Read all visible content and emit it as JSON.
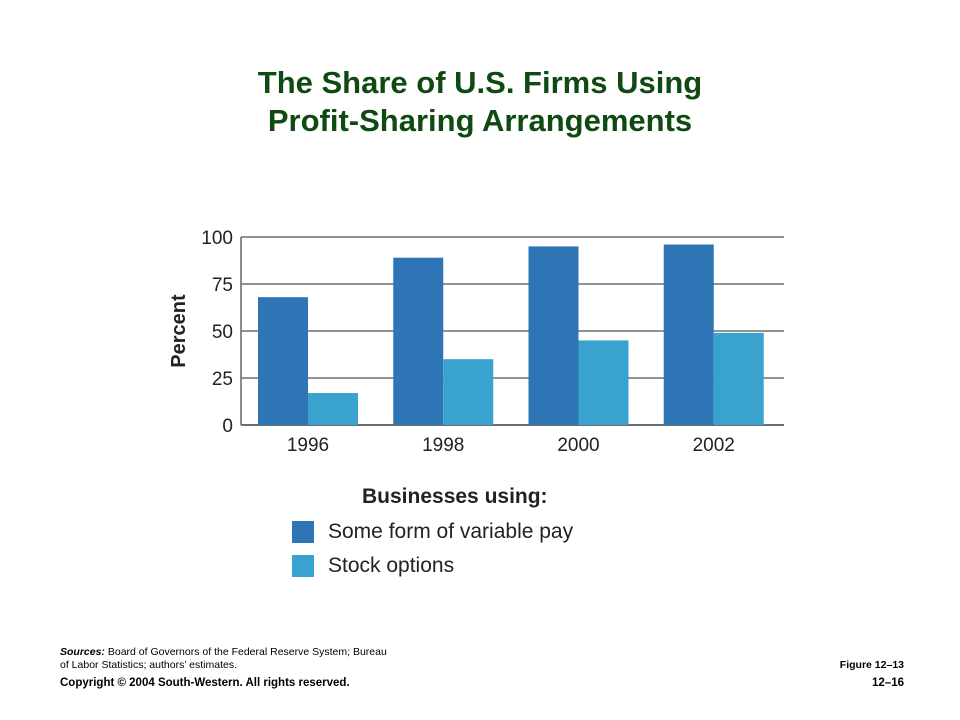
{
  "chart_data": {
    "type": "bar",
    "title": "The Share of U.S. Firms Using\nProfit-Sharing Arrangements",
    "ylabel": "Percent",
    "xlabel": "",
    "categories": [
      "1996",
      "1998",
      "2000",
      "2002"
    ],
    "series": [
      {
        "name": "Some form of variable pay",
        "values": [
          68,
          89,
          95,
          96
        ],
        "color": "#2e75b6"
      },
      {
        "name": "Stock options",
        "values": [
          17,
          35,
          45,
          49
        ],
        "color": "#3aa2cf"
      }
    ],
    "ylim": [
      0,
      100
    ],
    "yticks": [
      0,
      25,
      50,
      75,
      100
    ],
    "grid": true,
    "legend": {
      "title": "Businesses using:",
      "placement": "bottom"
    }
  },
  "footer": {
    "sources_label": "Sources:",
    "sources_text": " Board of Governors of the Federal Reserve System; Bureau of Labor Statistics; authors’ estimates.",
    "figure": "Figure 12–13",
    "copyright": "Copyright © 2004 South-Western. All rights reserved.",
    "page": "12–16"
  }
}
